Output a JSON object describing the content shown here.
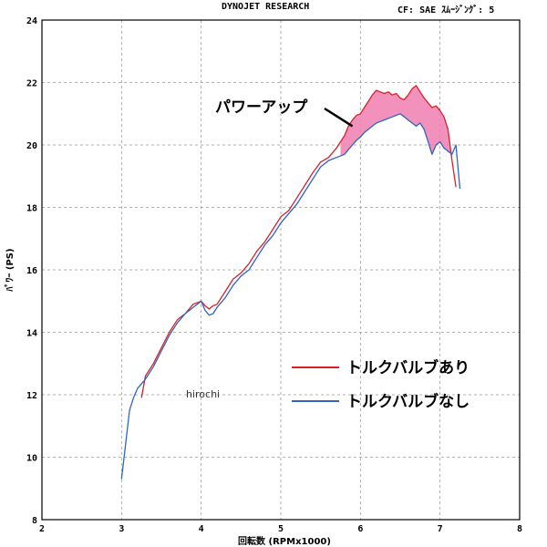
{
  "header": {
    "left": "DYNOJET  RESEARCH",
    "right": "CF: SAE  ｽﾑｰｼﾞﾝｸﾞ: 5"
  },
  "watermark": "hirochi",
  "annotation": {
    "text": "パワーアップ",
    "at": [
      5.9,
      20.6
    ]
  },
  "chart_data": {
    "type": "line",
    "xlabel": "回転数 (RPMx1000)",
    "ylabel": "ﾊﾟﾜｰ (PS)",
    "xlim": [
      2,
      8
    ],
    "ylim": [
      8,
      24
    ],
    "xticks": [
      "2",
      "3",
      "4",
      "5",
      "6",
      "7",
      "8"
    ],
    "yticks": [
      "8",
      "10",
      "12",
      "14",
      "16",
      "18",
      "20",
      "22",
      "24"
    ],
    "grid": true,
    "legend_position": "lower-right",
    "series": [
      {
        "name": "トルクバルブあり",
        "color": "#d9202a",
        "x": [
          3.25,
          3.3,
          3.4,
          3.5,
          3.6,
          3.7,
          3.8,
          3.9,
          4.0,
          4.05,
          4.1,
          4.15,
          4.2,
          4.3,
          4.4,
          4.5,
          4.6,
          4.7,
          4.8,
          4.9,
          5.0,
          5.1,
          5.2,
          5.3,
          5.4,
          5.5,
          5.6,
          5.7,
          5.8,
          5.85,
          5.9,
          5.95,
          6.0,
          6.05,
          6.1,
          6.15,
          6.2,
          6.25,
          6.3,
          6.35,
          6.4,
          6.45,
          6.5,
          6.55,
          6.6,
          6.65,
          6.7,
          6.75,
          6.8,
          6.85,
          6.9,
          6.95,
          7.0,
          7.05,
          7.1,
          7.15,
          7.2
        ],
        "values": [
          11.9,
          12.6,
          13.0,
          13.5,
          14.0,
          14.4,
          14.6,
          14.9,
          15.0,
          14.85,
          14.75,
          14.85,
          14.9,
          15.3,
          15.7,
          15.9,
          16.2,
          16.6,
          16.9,
          17.3,
          17.7,
          17.9,
          18.3,
          18.7,
          19.1,
          19.45,
          19.6,
          19.9,
          20.3,
          20.6,
          20.8,
          20.95,
          21.0,
          21.2,
          21.4,
          21.6,
          21.75,
          21.7,
          21.65,
          21.7,
          21.6,
          21.65,
          21.5,
          21.45,
          21.6,
          21.8,
          21.9,
          21.7,
          21.5,
          21.35,
          21.2,
          21.25,
          21.1,
          20.9,
          20.5,
          19.5,
          18.65
        ]
      },
      {
        "name": "トルクバルブなし",
        "color": "#2f63c6",
        "x": [
          3.0,
          3.05,
          3.1,
          3.15,
          3.2,
          3.3,
          3.4,
          3.5,
          3.6,
          3.7,
          3.8,
          3.9,
          4.0,
          4.05,
          4.1,
          4.15,
          4.2,
          4.3,
          4.4,
          4.5,
          4.6,
          4.7,
          4.8,
          4.9,
          5.0,
          5.1,
          5.2,
          5.3,
          5.4,
          5.5,
          5.6,
          5.7,
          5.8,
          5.85,
          5.9,
          5.95,
          6.0,
          6.05,
          6.1,
          6.15,
          6.2,
          6.25,
          6.3,
          6.35,
          6.4,
          6.45,
          6.5,
          6.55,
          6.6,
          6.65,
          6.7,
          6.75,
          6.8,
          6.85,
          6.9,
          6.95,
          7.0,
          7.05,
          7.1,
          7.15,
          7.2,
          7.25
        ],
        "values": [
          9.3,
          10.4,
          11.5,
          11.9,
          12.2,
          12.5,
          12.9,
          13.4,
          13.9,
          14.3,
          14.6,
          14.8,
          15.0,
          14.7,
          14.55,
          14.6,
          14.8,
          15.1,
          15.5,
          15.8,
          16.0,
          16.4,
          16.8,
          17.1,
          17.5,
          17.8,
          18.1,
          18.5,
          18.9,
          19.3,
          19.5,
          19.6,
          19.7,
          19.85,
          20.0,
          20.15,
          20.25,
          20.4,
          20.5,
          20.6,
          20.7,
          20.75,
          20.8,
          20.85,
          20.9,
          20.95,
          21.0,
          20.9,
          20.8,
          20.7,
          20.6,
          20.7,
          20.5,
          20.1,
          19.7,
          20.0,
          20.1,
          19.9,
          19.8,
          19.7,
          20.0,
          18.6
        ]
      }
    ]
  }
}
